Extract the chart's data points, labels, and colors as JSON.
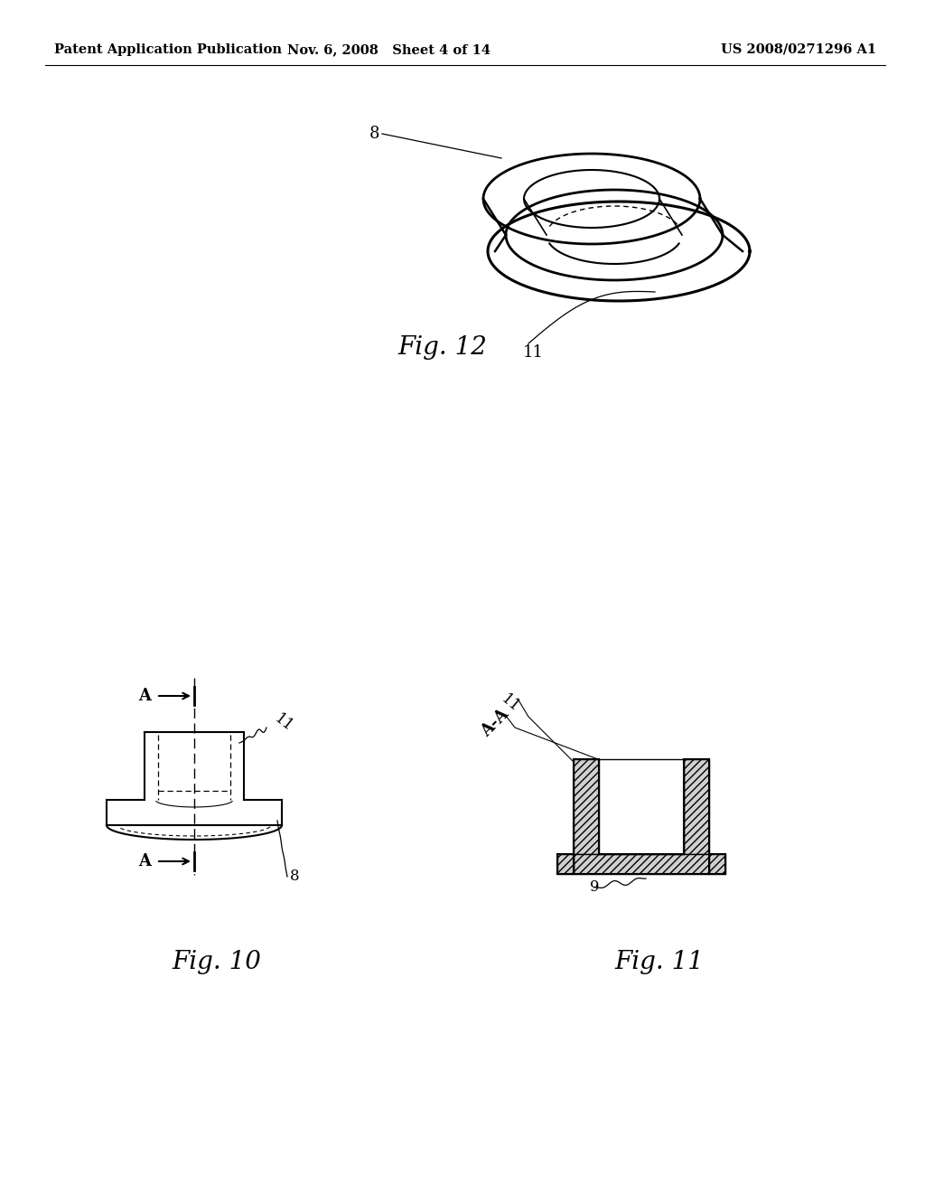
{
  "bg_color": "#ffffff",
  "header_left": "Patent Application Publication",
  "header_mid": "Nov. 6, 2008   Sheet 4 of 14",
  "header_right": "US 2008/0271296 A1",
  "fig12_label": "Fig. 12",
  "fig10_label": "Fig. 10",
  "fig11_label": "Fig. 11",
  "label_8_fig12": "8",
  "label_11_fig12": "11",
  "label_11_fig10": "11",
  "label_8_fig10": "8",
  "label_AA_fig11": "A-A",
  "label_11_fig11": "11",
  "label_9_fig11": "9",
  "label_A_top": "A",
  "label_A_bot": "A"
}
